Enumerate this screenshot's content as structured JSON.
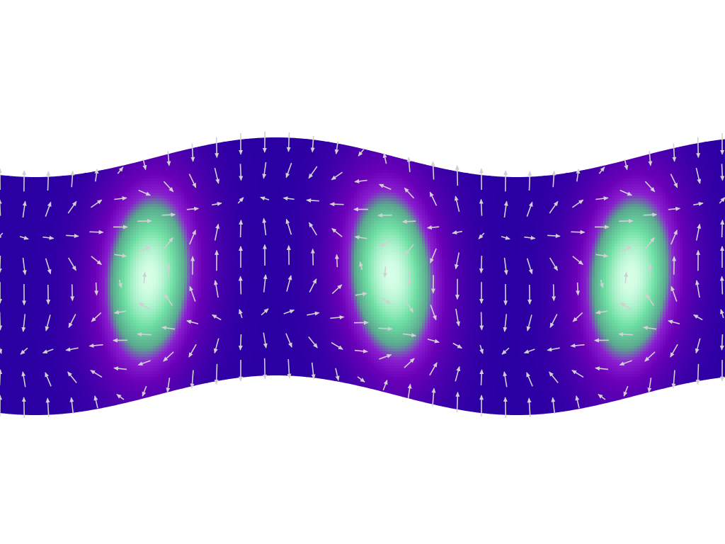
{
  "figure": {
    "kind": "vector-field-over-scalar-field",
    "background_color": "#ffffff",
    "arrow_color": "#d0d0d4",
    "colormap": {
      "name": "blue-purple-green",
      "stops": [
        "#2a00a3",
        "#6a00b8",
        "#8a1fd0",
        "#5aa88e",
        "#6fe0a4",
        "#d8ffe8"
      ]
    },
    "vortex_count": 3,
    "rotation": "counterclockwise"
  }
}
